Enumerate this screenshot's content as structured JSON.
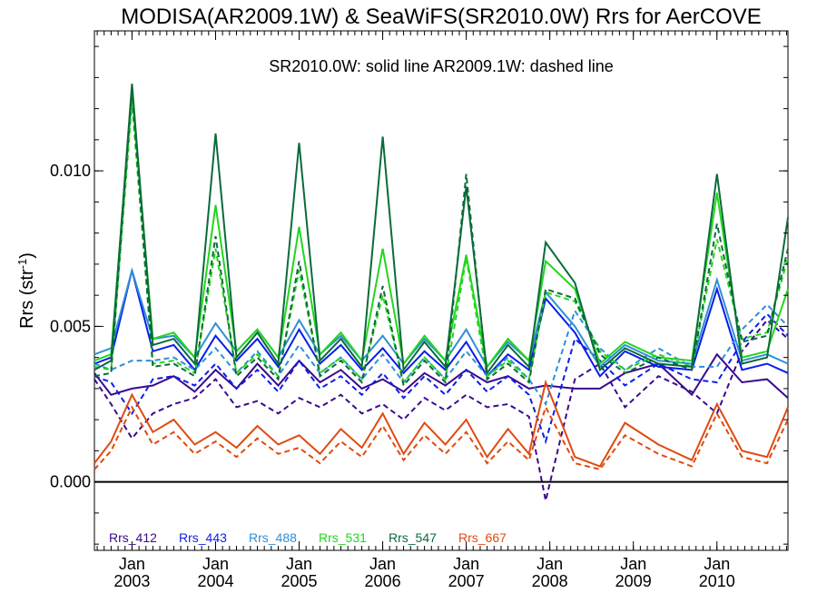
{
  "chart_data": {
    "type": "line",
    "title": "MODISA(AR2009.1W) & SeaWiFS(SR2010.0W)  Rrs for AerCOVE",
    "annotation": "SR2010.0W: solid line   AR2009.1W: dashed line",
    "ylabel_main": "Rrs (str",
    "ylabel_sup": "-1",
    "ylabel_end": ")",
    "ylim": [
      -0.0022,
      0.0145
    ],
    "xlim": [
      2002.55,
      2010.85
    ],
    "y_ticks": [
      {
        "value": 0.0,
        "label": "0.000"
      },
      {
        "value": 0.005,
        "label": "0.005"
      },
      {
        "value": 0.01,
        "label": "0.010"
      }
    ],
    "x_ticks": [
      {
        "value": 2003.0,
        "month": "Jan",
        "year": "2003"
      },
      {
        "value": 2004.0,
        "month": "Jan",
        "year": "2004"
      },
      {
        "value": 2005.0,
        "month": "Jan",
        "year": "2005"
      },
      {
        "value": 2006.0,
        "month": "Jan",
        "year": "2006"
      },
      {
        "value": 2007.0,
        "month": "Jan",
        "year": "2007"
      },
      {
        "value": 2008.0,
        "month": "Jan",
        "year": "2008"
      },
      {
        "value": 2009.0,
        "month": "Jan",
        "year": "2009"
      },
      {
        "value": 2010.0,
        "month": "Jan",
        "year": "2010"
      }
    ],
    "zero_line": 0.0,
    "series": [
      {
        "name": "Rrs_412",
        "color": "#3b0a8c",
        "x": [
          2002.55,
          2002.75,
          2003.0,
          2003.25,
          2003.5,
          2003.75,
          2004.0,
          2004.25,
          2004.5,
          2004.75,
          2005.0,
          2005.25,
          2005.5,
          2005.75,
          2006.0,
          2006.25,
          2006.5,
          2006.75,
          2007.0,
          2007.25,
          2007.5,
          2007.75,
          2007.95,
          2008.3,
          2008.6,
          2008.9,
          2009.3,
          2009.7,
          2010.0,
          2010.3,
          2010.6,
          2010.85
        ],
        "solid": [
          0.0035,
          0.0028,
          0.003,
          0.0031,
          0.0034,
          0.0029,
          0.0036,
          0.003,
          0.0038,
          0.0031,
          0.0039,
          0.0032,
          0.0036,
          0.003,
          0.0033,
          0.0029,
          0.0035,
          0.0031,
          0.0036,
          0.0032,
          0.0034,
          0.003,
          0.0031,
          0.003,
          0.003,
          0.0035,
          0.0038,
          0.0028,
          0.0041,
          0.0032,
          0.0033,
          0.0027
        ],
        "dashed": [
          0.0033,
          0.0025,
          0.0014,
          0.0022,
          0.0025,
          0.0027,
          0.0033,
          0.0024,
          0.0026,
          0.0022,
          0.0027,
          0.0024,
          0.0028,
          0.0022,
          0.0025,
          0.002,
          0.0027,
          0.0023,
          0.0028,
          0.0024,
          0.0025,
          0.0021,
          -0.0006,
          0.0033,
          0.0038,
          0.0024,
          0.0034,
          0.0029,
          0.0022,
          0.0042,
          0.0052,
          0.0046
        ]
      },
      {
        "name": "Rrs_443",
        "color": "#0a1ee8",
        "x": [
          2002.55,
          2002.75,
          2003.0,
          2003.25,
          2003.5,
          2003.75,
          2004.0,
          2004.25,
          2004.5,
          2004.75,
          2005.0,
          2005.25,
          2005.5,
          2005.75,
          2006.0,
          2006.25,
          2006.5,
          2006.75,
          2007.0,
          2007.25,
          2007.5,
          2007.75,
          2007.95,
          2008.3,
          2008.6,
          2008.9,
          2009.3,
          2009.7,
          2010.0,
          2010.3,
          2010.6,
          2010.85
        ],
        "solid": [
          0.0038,
          0.004,
          0.0068,
          0.0042,
          0.0044,
          0.0036,
          0.0047,
          0.0039,
          0.0046,
          0.0037,
          0.0049,
          0.0038,
          0.0044,
          0.0036,
          0.0043,
          0.0035,
          0.0042,
          0.0036,
          0.0045,
          0.0034,
          0.0041,
          0.0036,
          0.0059,
          0.0048,
          0.0034,
          0.0042,
          0.0037,
          0.0036,
          0.0062,
          0.0036,
          0.0038,
          0.0035
        ],
        "dashed": [
          0.0034,
          0.0032,
          0.0022,
          0.0033,
          0.0034,
          0.0031,
          0.0038,
          0.003,
          0.0036,
          0.0029,
          0.0039,
          0.003,
          0.0034,
          0.0028,
          0.0035,
          0.0027,
          0.0034,
          0.0028,
          0.0036,
          0.0029,
          0.0034,
          0.0028,
          0.0013,
          0.0046,
          0.0039,
          0.0031,
          0.0038,
          0.0033,
          0.0032,
          0.0045,
          0.0054,
          0.0047
        ]
      },
      {
        "name": "Rrs_488",
        "color": "#2f8fd6",
        "x": [
          2002.55,
          2002.75,
          2003.0,
          2003.25,
          2003.5,
          2003.75,
          2004.0,
          2004.25,
          2004.5,
          2004.75,
          2005.0,
          2005.25,
          2005.5,
          2005.75,
          2006.0,
          2006.25,
          2006.5,
          2006.75,
          2007.0,
          2007.25,
          2007.5,
          2007.75,
          2007.95,
          2008.3,
          2008.6,
          2008.9,
          2009.3,
          2009.7,
          2010.0,
          2010.3,
          2010.6,
          2010.85
        ],
        "solid": [
          0.0041,
          0.0043,
          0.0068,
          0.0046,
          0.0047,
          0.004,
          0.0051,
          0.0042,
          0.0049,
          0.004,
          0.0052,
          0.0041,
          0.0047,
          0.0039,
          0.0047,
          0.0038,
          0.0046,
          0.0039,
          0.0049,
          0.0037,
          0.0045,
          0.0039,
          0.0061,
          0.005,
          0.0037,
          0.0044,
          0.0039,
          0.0038,
          0.0065,
          0.0039,
          0.0041,
          0.0038
        ],
        "dashed": [
          0.0038,
          0.0036,
          0.0039,
          0.0039,
          0.004,
          0.0036,
          0.0043,
          0.0035,
          0.0042,
          0.0034,
          0.0044,
          0.0035,
          0.004,
          0.0033,
          0.0041,
          0.0032,
          0.004,
          0.0033,
          0.0042,
          0.0034,
          0.004,
          0.0033,
          0.0025,
          0.0055,
          0.0043,
          0.0036,
          0.0043,
          0.0037,
          0.0037,
          0.0049,
          0.0057,
          0.005
        ]
      },
      {
        "name": "Rrs_531",
        "color": "#22d61e",
        "x": [
          2002.55,
          2002.75,
          2003.0,
          2003.25,
          2003.5,
          2003.75,
          2004.0,
          2004.25,
          2004.5,
          2004.75,
          2005.0,
          2005.25,
          2005.5,
          2005.75,
          2006.0,
          2006.25,
          2006.5,
          2006.75,
          2007.0,
          2007.25,
          2007.5,
          2007.75,
          2007.95,
          2008.3,
          2008.6,
          2008.9,
          2009.3,
          2009.7,
          2010.0,
          2010.3,
          2010.6,
          2010.85
        ],
        "solid": [
          0.0039,
          0.0041,
          0.0125,
          0.0046,
          0.0048,
          0.004,
          0.0089,
          0.0042,
          0.0049,
          0.004,
          0.0082,
          0.0041,
          0.0048,
          0.0039,
          0.0075,
          0.0038,
          0.0047,
          0.0039,
          0.0073,
          0.0037,
          0.0046,
          0.0039,
          0.0071,
          0.0062,
          0.0038,
          0.0045,
          0.004,
          0.0039,
          0.0093,
          0.004,
          0.0042,
          0.0062
        ],
        "dashed": [
          0.0037,
          0.0036,
          0.0122,
          0.0038,
          0.0039,
          0.0035,
          0.0075,
          0.0035,
          0.0041,
          0.0034,
          0.0068,
          0.0035,
          0.004,
          0.0033,
          0.006,
          0.0032,
          0.004,
          0.0033,
          0.0072,
          0.0034,
          0.0039,
          0.0033,
          0.0061,
          0.0058,
          0.0042,
          0.0036,
          0.0041,
          0.0037,
          0.0078,
          0.0046,
          0.0048,
          0.0072
        ]
      },
      {
        "name": "Rrs_547",
        "color": "#0b6b3a",
        "x": [
          2002.55,
          2002.75,
          2003.0,
          2003.25,
          2003.5,
          2003.75,
          2004.0,
          2004.25,
          2004.5,
          2004.75,
          2005.0,
          2005.25,
          2005.5,
          2005.75,
          2006.0,
          2006.25,
          2006.5,
          2006.75,
          2007.0,
          2007.25,
          2007.5,
          2007.75,
          2007.95,
          2008.3,
          2008.6,
          2008.9,
          2009.3,
          2009.7,
          2010.0,
          2010.3,
          2010.6,
          2010.85
        ],
        "solid": [
          0.0036,
          0.0039,
          0.0128,
          0.0044,
          0.0046,
          0.0038,
          0.0112,
          0.004,
          0.0048,
          0.0038,
          0.0109,
          0.0039,
          0.0046,
          0.0037,
          0.0111,
          0.0036,
          0.0045,
          0.0037,
          0.0095,
          0.0035,
          0.0044,
          0.0037,
          0.0077,
          0.0064,
          0.0036,
          0.0043,
          0.0038,
          0.0037,
          0.0099,
          0.0038,
          0.004,
          0.0085
        ],
        "dashed": [
          0.0034,
          0.0035,
          0.0126,
          0.0037,
          0.0038,
          0.0034,
          0.0079,
          0.0034,
          0.004,
          0.0033,
          0.0071,
          0.0034,
          0.0039,
          0.0032,
          0.0063,
          0.0031,
          0.0039,
          0.0032,
          0.0099,
          0.0033,
          0.0038,
          0.0032,
          0.0062,
          0.0059,
          0.0041,
          0.0035,
          0.004,
          0.0036,
          0.0083,
          0.0045,
          0.0047,
          0.0075
        ]
      },
      {
        "name": "Rrs_667",
        "color": "#e04a10",
        "x": [
          2002.55,
          2002.75,
          2003.0,
          2003.25,
          2003.5,
          2003.75,
          2004.0,
          2004.25,
          2004.5,
          2004.75,
          2005.0,
          2005.25,
          2005.5,
          2005.75,
          2006.0,
          2006.25,
          2006.5,
          2006.75,
          2007.0,
          2007.25,
          2007.5,
          2007.75,
          2007.95,
          2008.3,
          2008.6,
          2008.9,
          2009.3,
          2009.7,
          2010.0,
          2010.3,
          2010.6,
          2010.85
        ],
        "solid": [
          0.0006,
          0.0013,
          0.0028,
          0.0016,
          0.002,
          0.0012,
          0.0016,
          0.0011,
          0.0018,
          0.0012,
          0.0015,
          0.0009,
          0.0017,
          0.0011,
          0.0022,
          0.0009,
          0.0019,
          0.0012,
          0.002,
          0.0008,
          0.0017,
          0.0009,
          0.0032,
          0.0008,
          0.0005,
          0.0019,
          0.0012,
          0.0007,
          0.0025,
          0.001,
          0.0008,
          0.0024
        ],
        "dashed": [
          0.0004,
          0.001,
          0.0024,
          0.0012,
          0.0016,
          0.0009,
          0.0013,
          0.0008,
          0.0014,
          0.0009,
          0.0011,
          0.0006,
          0.0013,
          0.0008,
          0.0018,
          0.0007,
          0.0015,
          0.0009,
          0.0016,
          0.0006,
          0.0013,
          0.0007,
          0.0024,
          0.0006,
          0.0004,
          0.0015,
          0.0009,
          0.0005,
          0.0022,
          0.0008,
          0.0006,
          0.002
        ]
      }
    ],
    "legend_placement": "bottom-left inside plot"
  }
}
